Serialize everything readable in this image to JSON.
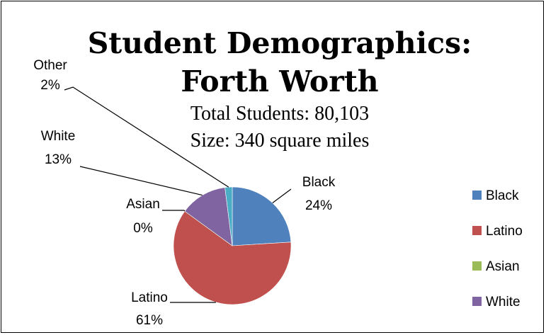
{
  "chart_data": {
    "type": "pie",
    "title": "Student Demographics:",
    "title_line2": "Forth Worth",
    "subtitle_1": "Total Students: 80,103",
    "subtitle_2": "Size: 340 square miles",
    "slices": [
      {
        "name": "Black",
        "percent": 24,
        "label": "24%",
        "color": "#4F81BD",
        "legend": true
      },
      {
        "name": "Latino",
        "percent": 61,
        "label": "61%",
        "color": "#C0504D",
        "legend": true
      },
      {
        "name": "Asian",
        "percent": 0,
        "label": "0%",
        "color": "#9BBB59",
        "legend": true
      },
      {
        "name": "White",
        "percent": 13,
        "label": "13%",
        "color": "#8064A2",
        "legend": true
      },
      {
        "name": "Other",
        "percent": 2,
        "label": "2%",
        "color": "#4BACC6",
        "legend": false
      }
    ],
    "legend_position": "right"
  }
}
